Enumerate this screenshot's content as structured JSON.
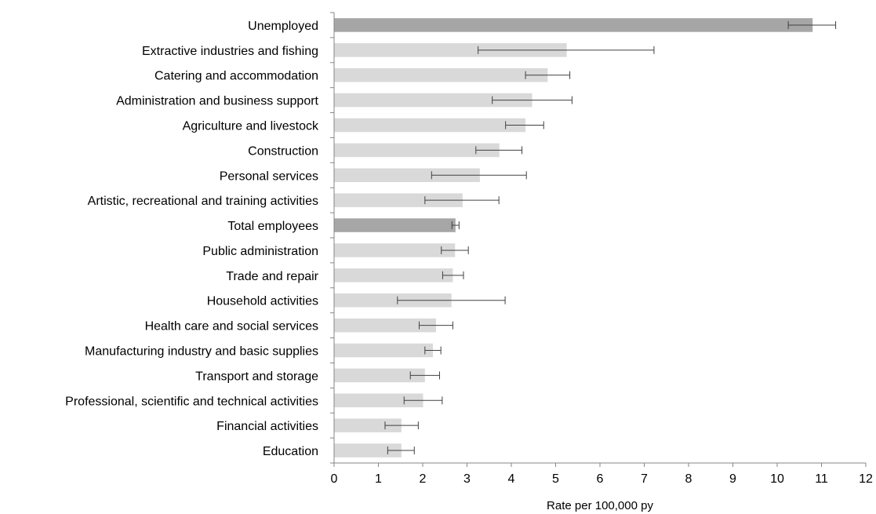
{
  "chart_data": {
    "type": "bar",
    "orientation": "horizontal",
    "xlabel": "Rate per 100,000 py",
    "xlim": [
      0,
      12
    ],
    "xticks": [
      "0",
      "1",
      "2",
      "3",
      "4",
      "5",
      "6",
      "7",
      "8",
      "9",
      "10",
      "11",
      "12"
    ],
    "grid": false,
    "colors": {
      "highlight": "#a6a6a6",
      "default": "#d9d9d9",
      "error_bar": "#404040"
    },
    "categories": [
      "Unemployed",
      "Extractive industries and fishing",
      "Catering and accommodation",
      "Administration and business support",
      "Agriculture and livestock",
      "Construction",
      "Personal services",
      "Artistic, recreational and training activities",
      "Total employees",
      "Public administration",
      "Trade and repair",
      "Household activities",
      "Health care and social services",
      "Manufacturing industry and basic supplies",
      "Transport and storage",
      "Professional, scientific and technical activities",
      "Financial activities",
      "Education"
    ],
    "values": [
      10.8,
      5.25,
      4.82,
      4.47,
      4.32,
      3.73,
      3.29,
      2.9,
      2.74,
      2.73,
      2.68,
      2.65,
      2.3,
      2.23,
      2.05,
      2.01,
      1.52,
      1.52
    ],
    "error_low": [
      10.25,
      3.25,
      4.32,
      3.57,
      3.87,
      3.2,
      2.2,
      2.05,
      2.66,
      2.42,
      2.45,
      1.43,
      1.92,
      2.05,
      1.72,
      1.58,
      1.15,
      1.21
    ],
    "error_high": [
      11.32,
      7.22,
      5.32,
      5.37,
      4.73,
      4.24,
      4.34,
      3.72,
      2.82,
      3.03,
      2.92,
      3.86,
      2.68,
      2.41,
      2.38,
      2.44,
      1.9,
      1.81
    ],
    "highlighted": [
      "Unemployed",
      "Total employees"
    ]
  }
}
